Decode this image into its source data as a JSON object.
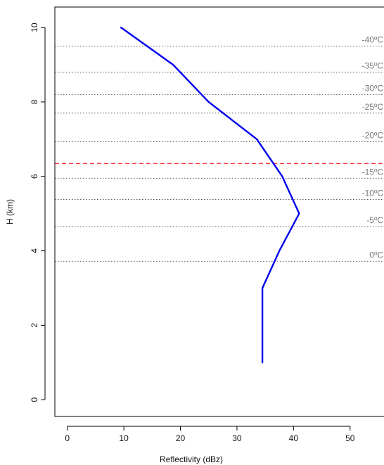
{
  "chart_data": {
    "type": "line",
    "xlabel": "Reflectivity (dBz)",
    "ylabel": "H (km)",
    "xlim": [
      -2.2,
      56
    ],
    "ylim": [
      -0.45,
      10.55
    ],
    "x_ticks": [
      0,
      10,
      20,
      30,
      40,
      50
    ],
    "y_ticks": [
      0,
      2,
      4,
      6,
      8,
      10
    ],
    "series": [
      {
        "color": "#0000ee",
        "x": [
          9.5,
          18.7,
          25.0,
          33.5,
          38.0,
          41.0,
          37.5,
          34.5,
          34.5
        ],
        "y": [
          10.0,
          9.0,
          8.0,
          7.0,
          6.0,
          5.0,
          4.0,
          3.0,
          1.0
        ]
      }
    ],
    "isotherms": [
      {
        "label": "-40ºC",
        "height": 9.5
      },
      {
        "label": "-35ºC",
        "height": 8.8
      },
      {
        "label": "-30ºC",
        "height": 8.2
      },
      {
        "label": "-25ºC",
        "height": 7.7
      },
      {
        "label": "-20ºC",
        "height": 6.93
      },
      {
        "label": "-15ºC",
        "height": 5.95
      },
      {
        "label": "-10ºC",
        "height": 5.38
      },
      {
        "label": "-5ºC",
        "height": 4.65
      },
      {
        "label": "0ºC",
        "height": 3.72
      }
    ],
    "reference_line": {
      "height": 6.35,
      "color": "#ff0000",
      "style": "dashed"
    },
    "isotherm_color": "#555555",
    "grid": false
  }
}
